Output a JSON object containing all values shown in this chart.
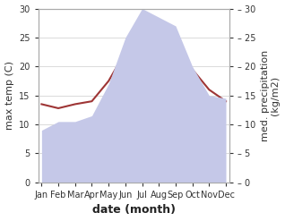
{
  "months": [
    "Jan",
    "Feb",
    "Mar",
    "Apr",
    "May",
    "Jun",
    "Jul",
    "Aug",
    "Sep",
    "Oct",
    "Nov",
    "Dec"
  ],
  "max_temp": [
    13.5,
    12.8,
    13.5,
    14.0,
    17.5,
    22.5,
    27.5,
    26.0,
    22.5,
    19.5,
    16.0,
    14.0
  ],
  "precipitation": [
    9.0,
    10.5,
    10.5,
    11.5,
    17.0,
    25.0,
    30.0,
    28.5,
    27.0,
    20.0,
    15.0,
    14.5
  ],
  "temp_color": "#9e3535",
  "precip_fill_color": "#c5c8e8",
  "ylim": [
    0,
    30
  ],
  "xlabel": "date (month)",
  "ylabel_left": "max temp (C)",
  "ylabel_right": "med. precipitation\n(kg/m2)",
  "tick_fontsize": 7,
  "label_fontsize": 8,
  "axis_label_fontsize": 9
}
